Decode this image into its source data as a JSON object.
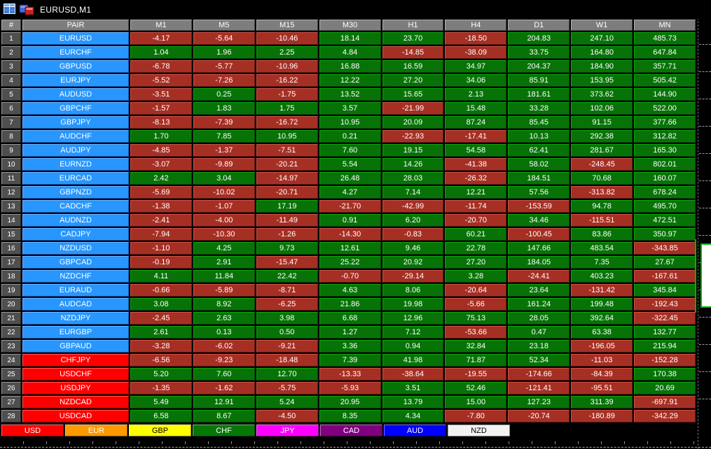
{
  "window": {
    "title": "EURUSD,M1"
  },
  "icons": [
    {
      "name": "quotes-table-icon"
    },
    {
      "name": "charts-icon"
    }
  ],
  "table": {
    "columns": [
      "#",
      "PAIR",
      "M1",
      "M5",
      "M15",
      "M30",
      "H1",
      "H4",
      "D1",
      "W1",
      "MN"
    ],
    "rows": [
      {
        "n": "1",
        "pair": "EURUSD",
        "pair_bg": "blue",
        "values": [
          "-4.17",
          "-5.64",
          "-10.46",
          "18.14",
          "23.70",
          "-18.50",
          "204.83",
          "247.10",
          "485.73"
        ]
      },
      {
        "n": "2",
        "pair": "EURCHF",
        "pair_bg": "blue",
        "values": [
          "1.04",
          "1.96",
          "2.25",
          "4.84",
          "-14.85",
          "-38.09",
          "33.75",
          "164.80",
          "647.84"
        ]
      },
      {
        "n": "3",
        "pair": "GBPUSD",
        "pair_bg": "blue",
        "values": [
          "-6.78",
          "-5.77",
          "-10.96",
          "16.88",
          "16.59",
          "34.97",
          "204.37",
          "184.90",
          "357.71"
        ]
      },
      {
        "n": "4",
        "pair": "EURJPY",
        "pair_bg": "blue",
        "values": [
          "-5.52",
          "-7.26",
          "-16.22",
          "12.22",
          "27.20",
          "34.06",
          "85.91",
          "153.95",
          "505.42"
        ]
      },
      {
        "n": "5",
        "pair": "AUDUSD",
        "pair_bg": "blue",
        "values": [
          "-3.51",
          "0.25",
          "-1.75",
          "13.52",
          "15.65",
          "2.13",
          "181.61",
          "373.62",
          "144.90"
        ]
      },
      {
        "n": "6",
        "pair": "GBPCHF",
        "pair_bg": "blue",
        "values": [
          "-1.57",
          "1.83",
          "1.75",
          "3.57",
          "-21.99",
          "15.48",
          "33.28",
          "102.06",
          "522.00"
        ]
      },
      {
        "n": "7",
        "pair": "GBPJPY",
        "pair_bg": "blue",
        "values": [
          "-8.13",
          "-7.39",
          "-16.72",
          "10.95",
          "20.09",
          "87.24",
          "85.45",
          "91.15",
          "377.66"
        ]
      },
      {
        "n": "8",
        "pair": "AUDCHF",
        "pair_bg": "blue",
        "values": [
          "1.70",
          "7.85",
          "10.95",
          "0.21",
          "-22.93",
          "-17.41",
          "10.13",
          "292.38",
          "312.82"
        ]
      },
      {
        "n": "9",
        "pair": "AUDJPY",
        "pair_bg": "blue",
        "values": [
          "-4.85",
          "-1.37",
          "-7.51",
          "7.60",
          "19.15",
          "54.58",
          "62.41",
          "281.67",
          "165.30"
        ]
      },
      {
        "n": "10",
        "pair": "EURNZD",
        "pair_bg": "blue",
        "values": [
          "-3.07",
          "-9.89",
          "-20.21",
          "5.54",
          "14.26",
          "-41.38",
          "58.02",
          "-248.45",
          "802.01"
        ]
      },
      {
        "n": "11",
        "pair": "EURCAD",
        "pair_bg": "blue",
        "values": [
          "2.42",
          "3.04",
          "-14.97",
          "26.48",
          "28.03",
          "-26.32",
          "184.51",
          "70.68",
          "160.07"
        ]
      },
      {
        "n": "12",
        "pair": "GBPNZD",
        "pair_bg": "blue",
        "values": [
          "-5.69",
          "-10.02",
          "-20.71",
          "4.27",
          "7.14",
          "12.21",
          "57.56",
          "-313.82",
          "678.24"
        ]
      },
      {
        "n": "13",
        "pair": "CADCHF",
        "pair_bg": "blue",
        "values": [
          "-1.38",
          "-1.07",
          "17.19",
          "-21.70",
          "-42.99",
          "-11.74",
          "-153.59",
          "94.78",
          "495.70"
        ]
      },
      {
        "n": "14",
        "pair": "AUDNZD",
        "pair_bg": "blue",
        "values": [
          "-2.41",
          "-4.00",
          "-11.49",
          "0.91",
          "6.20",
          "-20.70",
          "34.46",
          "-115.51",
          "472.51"
        ]
      },
      {
        "n": "15",
        "pair": "CADJPY",
        "pair_bg": "blue",
        "values": [
          "-7.94",
          "-10.30",
          "-1.26",
          "-14.30",
          "-0.83",
          "60.21",
          "-100.45",
          "83.86",
          "350.97"
        ]
      },
      {
        "n": "16",
        "pair": "NZDUSD",
        "pair_bg": "blue",
        "values": [
          "-1.10",
          "4.25",
          "9.73",
          "12.61",
          "9.46",
          "22.78",
          "147.66",
          "483.54",
          "-343.85"
        ]
      },
      {
        "n": "17",
        "pair": "GBPCAD",
        "pair_bg": "blue",
        "values": [
          "-0.19",
          "2.91",
          "-15.47",
          "25.22",
          "20.92",
          "27.20",
          "184.05",
          "7.35",
          "27.67"
        ]
      },
      {
        "n": "18",
        "pair": "NZDCHF",
        "pair_bg": "blue",
        "values": [
          "4.11",
          "11.84",
          "22.42",
          "-0.70",
          "-29.14",
          "3.28",
          "-24.41",
          "403.23",
          "-167.61"
        ]
      },
      {
        "n": "19",
        "pair": "EURAUD",
        "pair_bg": "blue",
        "values": [
          "-0.66",
          "-5.89",
          "-8.71",
          "4.63",
          "8.06",
          "-20.64",
          "23.64",
          "-131.42",
          "345.84"
        ]
      },
      {
        "n": "20",
        "pair": "AUDCAD",
        "pair_bg": "blue",
        "values": [
          "3.08",
          "8.92",
          "-6.25",
          "21.86",
          "19.98",
          "-5.66",
          "161.24",
          "199.48",
          "-192.43"
        ]
      },
      {
        "n": "21",
        "pair": "NZDJPY",
        "pair_bg": "blue",
        "values": [
          "-2.45",
          "2.63",
          "3.98",
          "6.68",
          "12.96",
          "75.13",
          "28.05",
          "392.64",
          "-322.45"
        ]
      },
      {
        "n": "22",
        "pair": "EURGBP",
        "pair_bg": "blue",
        "values": [
          "2.61",
          "0.13",
          "0.50",
          "1.27",
          "7.12",
          "-53.66",
          "0.47",
          "63.38",
          "132.77"
        ]
      },
      {
        "n": "23",
        "pair": "GBPAUD",
        "pair_bg": "blue",
        "values": [
          "-3.28",
          "-6.02",
          "-9.21",
          "3.36",
          "0.94",
          "32.84",
          "23.18",
          "-196.05",
          "215.94"
        ]
      },
      {
        "n": "24",
        "pair": "CHFJPY",
        "pair_bg": "red",
        "values": [
          "-6.56",
          "-9.23",
          "-18.48",
          "7.39",
          "41.98",
          "71.87",
          "52.34",
          "-11.03",
          "-152.28"
        ]
      },
      {
        "n": "25",
        "pair": "USDCHF",
        "pair_bg": "red",
        "values": [
          "5.20",
          "7.60",
          "12.70",
          "-13.33",
          "-38.64",
          "-19.55",
          "-174.66",
          "-84.39",
          "170.38"
        ]
      },
      {
        "n": "26",
        "pair": "USDJPY",
        "pair_bg": "red",
        "values": [
          "-1.35",
          "-1.62",
          "-5.75",
          "-5.93",
          "3.51",
          "52.46",
          "-121.41",
          "-95.51",
          "20.69"
        ]
      },
      {
        "n": "27",
        "pair": "NZDCAD",
        "pair_bg": "red",
        "values": [
          "5.49",
          "12.91",
          "5.24",
          "20.95",
          "13.79",
          "15.00",
          "127.23",
          "311.39",
          "-697.91"
        ]
      },
      {
        "n": "28",
        "pair": "USDCAD",
        "pair_bg": "red",
        "values": [
          "6.58",
          "8.67",
          "-4.50",
          "8.35",
          "4.34",
          "-7.80",
          "-20.74",
          "-180.89",
          "-342.29"
        ]
      }
    ]
  },
  "currency_buttons": [
    {
      "label": "USD",
      "bg": "#fe0000",
      "fg": "#ffffff"
    },
    {
      "label": "EUR",
      "bg": "#ff9900",
      "fg": "#ffffff"
    },
    {
      "label": "GBP",
      "bg": "#ffff00",
      "fg": "#000000"
    },
    {
      "label": "CHF",
      "bg": "#067806",
      "fg": "#ffffff"
    },
    {
      "label": "JPY",
      "bg": "#ff00ff",
      "fg": "#ffffff"
    },
    {
      "label": "CAD",
      "bg": "#800080",
      "fg": "#ffffff"
    },
    {
      "label": "AUD",
      "bg": "#0000ff",
      "fg": "#ffffff"
    },
    {
      "label": "NZD",
      "bg": "#f2f2f2",
      "fg": "#000000"
    }
  ],
  "colors": {
    "positive_cell": "#077307",
    "negative_cell": "#a62f24",
    "pair_blue": "#2796ff",
    "pair_red": "#fe0000",
    "header_gray": "#7d7d7d",
    "index_gray": "#4f4f4f",
    "background": "#000000",
    "candle_green": "#00b400"
  }
}
